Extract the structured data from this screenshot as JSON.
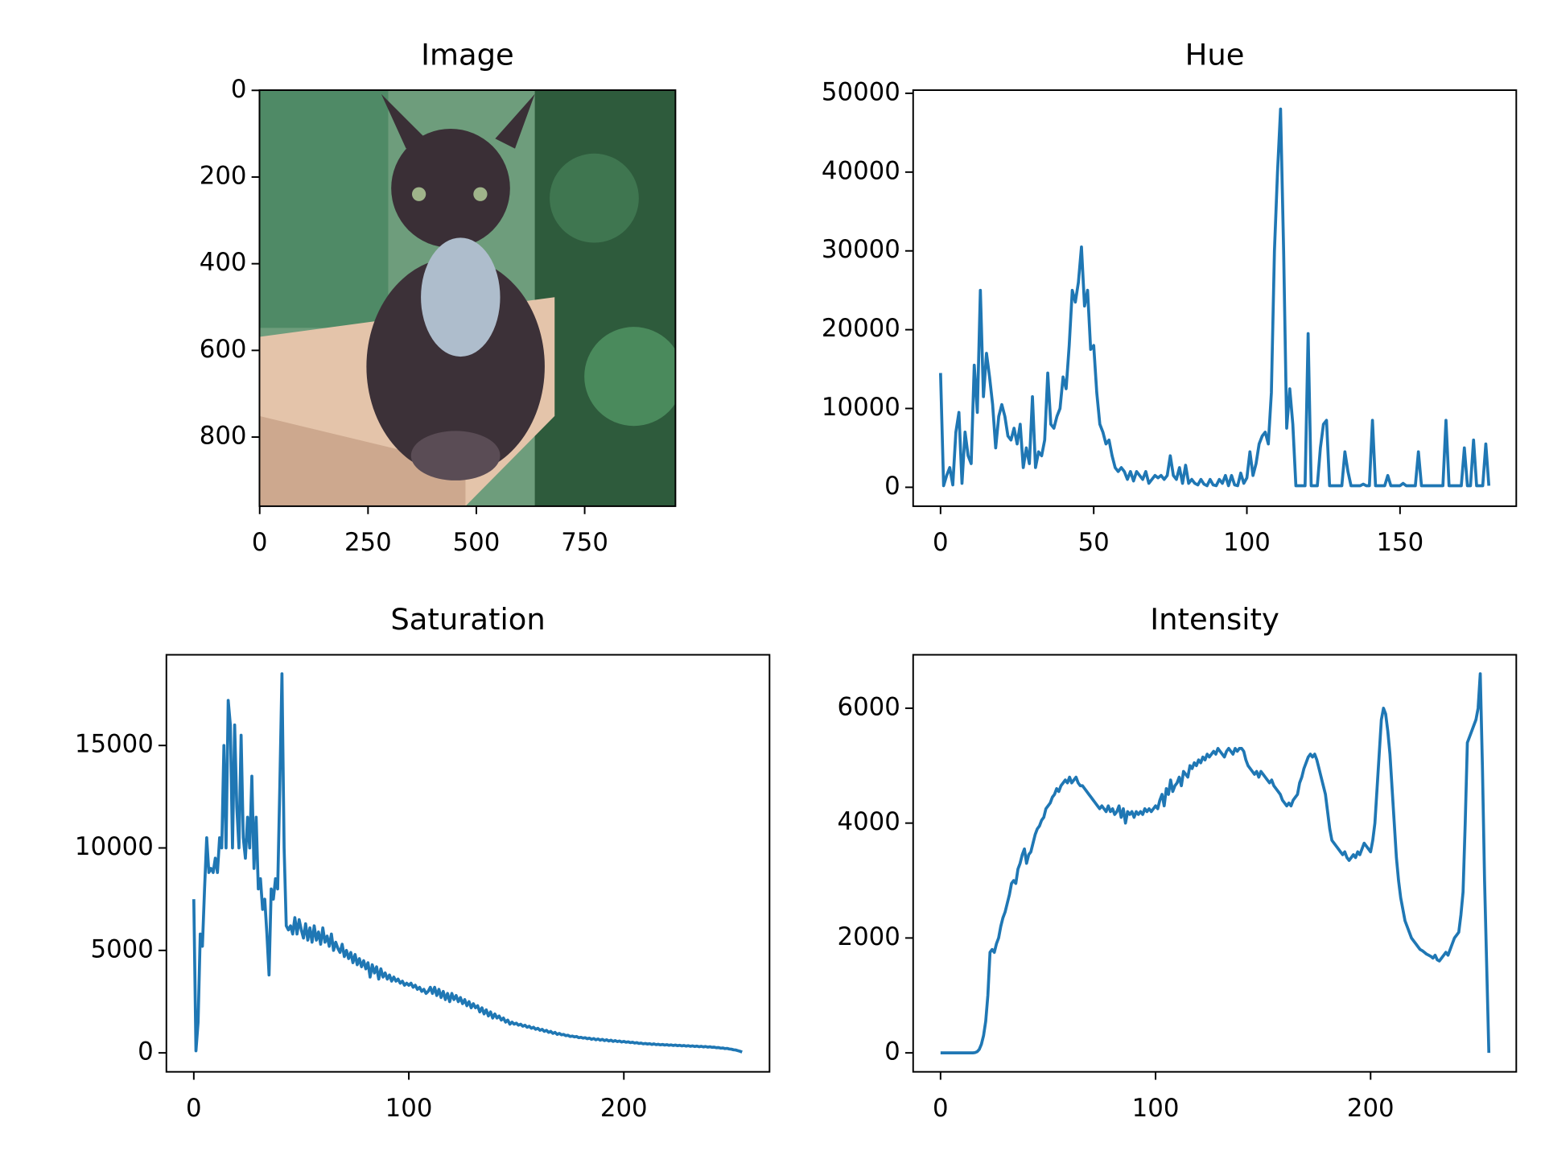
{
  "chart_data": [
    {
      "type": "image",
      "title": "Image",
      "xlim": [
        -0.5,
        959.5
      ],
      "ylim": [
        959.5,
        -0.5
      ],
      "xticks": [
        0,
        250,
        500,
        750
      ],
      "yticks": [
        0,
        200,
        400,
        600,
        800
      ]
    },
    {
      "type": "line",
      "title": "Hue",
      "color": "#1f77b4",
      "xlim": [
        -8.95,
        187.95
      ],
      "ylim": [
        -2400,
        50400
      ],
      "xticks": [
        0,
        50,
        100,
        150
      ],
      "yticks": [
        0,
        10000,
        20000,
        30000,
        40000,
        50000
      ],
      "x": [
        0,
        1,
        2,
        3,
        4,
        5,
        6,
        7,
        8,
        9,
        10,
        11,
        12,
        13,
        14,
        15,
        16,
        17,
        18,
        19,
        20,
        21,
        22,
        23,
        24,
        25,
        26,
        27,
        28,
        29,
        30,
        31,
        32,
        33,
        34,
        35,
        36,
        37,
        38,
        39,
        40,
        41,
        42,
        43,
        44,
        45,
        46,
        47,
        48,
        49,
        50,
        51,
        52,
        53,
        54,
        55,
        56,
        57,
        58,
        59,
        60,
        61,
        62,
        63,
        64,
        65,
        66,
        67,
        68,
        69,
        70,
        71,
        72,
        73,
        74,
        75,
        76,
        77,
        78,
        79,
        80,
        81,
        82,
        83,
        84,
        85,
        86,
        87,
        88,
        89,
        90,
        91,
        92,
        93,
        94,
        95,
        96,
        97,
        98,
        99,
        100,
        101,
        102,
        103,
        104,
        105,
        106,
        107,
        108,
        109,
        110,
        111,
        112,
        113,
        114,
        115,
        116,
        117,
        118,
        119,
        120,
        121,
        122,
        123,
        124,
        125,
        126,
        127,
        128,
        129,
        130,
        131,
        132,
        133,
        134,
        135,
        136,
        137,
        138,
        139,
        140,
        141,
        142,
        143,
        144,
        145,
        146,
        147,
        148,
        149,
        150,
        151,
        152,
        153,
        154,
        155,
        156,
        157,
        158,
        159,
        160,
        161,
        162,
        163,
        164,
        165,
        166,
        167,
        168,
        169,
        170,
        171,
        172,
        173,
        174,
        175,
        176,
        177,
        178,
        179
      ],
      "values": [
        14500,
        200,
        1500,
        2500,
        300,
        7000,
        9500,
        500,
        7000,
        4000,
        3000,
        15500,
        9500,
        25000,
        11500,
        17000,
        14000,
        10500,
        5000,
        9000,
        10500,
        9000,
        6500,
        6000,
        7500,
        5500,
        8000,
        2500,
        5000,
        3000,
        11500,
        2500,
        4500,
        4000,
        6000,
        14500,
        8000,
        7500,
        9000,
        10000,
        14000,
        12500,
        18000,
        25000,
        23500,
        26000,
        30500,
        23000,
        25000,
        17500,
        18000,
        12000,
        8000,
        7000,
        5500,
        6000,
        4000,
        2500,
        2000,
        2500,
        2000,
        1000,
        2000,
        800,
        2000,
        1500,
        1000,
        2000,
        500,
        1000,
        1500,
        1200,
        1500,
        1000,
        1500,
        4000,
        1500,
        1000,
        2500,
        500,
        2800,
        500,
        1000,
        500,
        300,
        1000,
        400,
        200,
        1000,
        300,
        200,
        1000,
        500,
        1500,
        200,
        1500,
        300,
        200,
        1800,
        500,
        1200,
        4500,
        1500,
        3000,
        5500,
        6500,
        7000,
        5500,
        12000,
        30000,
        40000,
        48000,
        30000,
        7500,
        12500,
        8000,
        200,
        200,
        200,
        200,
        19500,
        200,
        200,
        200,
        5000,
        8000,
        8500,
        200,
        200,
        200,
        200,
        200,
        4500,
        2000,
        200,
        200,
        200,
        200,
        400,
        200,
        200,
        8500,
        200,
        200,
        200,
        200,
        1500,
        200,
        200,
        200,
        200,
        500,
        200,
        200,
        200,
        200,
        4500,
        200,
        200,
        200,
        200,
        200,
        200,
        200,
        200,
        8500,
        200,
        200,
        200,
        200,
        200,
        5000,
        200,
        200,
        6000,
        200,
        200,
        200,
        5500,
        200
      ]
    },
    {
      "type": "line",
      "title": "Saturation",
      "color": "#1f77b4",
      "xlim": [
        -12.75,
        267.75
      ],
      "ylim": [
        -925,
        19425
      ],
      "xticks": [
        0,
        100,
        200
      ],
      "yticks": [
        0,
        5000,
        10000,
        15000
      ],
      "x": [
        0,
        1,
        2,
        3,
        4,
        5,
        6,
        7,
        8,
        9,
        10,
        11,
        12,
        13,
        14,
        15,
        16,
        17,
        18,
        19,
        20,
        21,
        22,
        23,
        24,
        25,
        26,
        27,
        28,
        29,
        30,
        31,
        32,
        33,
        34,
        35,
        36,
        37,
        38,
        39,
        40,
        41,
        42,
        43,
        44,
        45,
        46,
        47,
        48,
        49,
        50,
        51,
        52,
        53,
        54,
        55,
        56,
        57,
        58,
        59,
        60,
        61,
        62,
        63,
        64,
        65,
        66,
        67,
        68,
        69,
        70,
        71,
        72,
        73,
        74,
        75,
        76,
        77,
        78,
        79,
        80,
        81,
        82,
        83,
        84,
        85,
        86,
        87,
        88,
        89,
        90,
        91,
        92,
        93,
        94,
        95,
        96,
        97,
        98,
        99,
        100,
        101,
        102,
        103,
        104,
        105,
        106,
        107,
        108,
        109,
        110,
        111,
        112,
        113,
        114,
        115,
        116,
        117,
        118,
        119,
        120,
        121,
        122,
        123,
        124,
        125,
        126,
        127,
        128,
        129,
        130,
        131,
        132,
        133,
        134,
        135,
        136,
        137,
        138,
        139,
        140,
        141,
        142,
        143,
        144,
        145,
        146,
        147,
        148,
        149,
        150,
        151,
        152,
        153,
        154,
        155,
        156,
        157,
        158,
        159,
        160,
        161,
        162,
        163,
        164,
        165,
        166,
        167,
        168,
        169,
        170,
        171,
        172,
        173,
        174,
        175,
        176,
        177,
        178,
        179,
        180,
        181,
        182,
        183,
        184,
        185,
        186,
        187,
        188,
        189,
        190,
        191,
        192,
        193,
        194,
        195,
        196,
        197,
        198,
        199,
        200,
        201,
        202,
        203,
        204,
        205,
        206,
        207,
        208,
        209,
        210,
        211,
        212,
        213,
        214,
        215,
        216,
        217,
        218,
        219,
        220,
        221,
        222,
        223,
        224,
        225,
        226,
        227,
        228,
        229,
        230,
        231,
        232,
        233,
        234,
        235,
        236,
        237,
        238,
        239,
        240,
        241,
        242,
        243,
        244,
        245,
        246,
        247,
        248,
        249,
        250,
        251,
        252,
        253,
        254,
        255
      ],
      "values": [
        7500,
        100,
        1500,
        5800,
        5200,
        8000,
        10500,
        8800,
        9000,
        8800,
        9500,
        8800,
        10500,
        10000,
        15000,
        10000,
        17200,
        16000,
        10000,
        16000,
        12000,
        10000,
        15500,
        10500,
        9500,
        11500,
        10000,
        13500,
        9000,
        11500,
        8000,
        8500,
        7000,
        7500,
        5800,
        3800,
        8000,
        7500,
        8500,
        8000,
        13000,
        18500,
        10000,
        6200,
        6000,
        6200,
        5800,
        6600,
        5800,
        6500,
        6000,
        5600,
        6300,
        5500,
        6100,
        5400,
        6200,
        5500,
        5900,
        5300,
        6100,
        5400,
        5700,
        5200,
        5800,
        5000,
        5400,
        5100,
        4900,
        5300,
        4700,
        5000,
        4600,
        4900,
        4400,
        4800,
        4300,
        4600,
        4200,
        4500,
        4100,
        4400,
        3700,
        4300,
        3900,
        4200,
        3600,
        4100,
        3700,
        3900,
        3600,
        3800,
        3500,
        3700,
        3500,
        3600,
        3400,
        3500,
        3300,
        3400,
        3300,
        3400,
        3200,
        3300,
        3100,
        3200,
        3000,
        3100,
        2900,
        3000,
        3200,
        2900,
        3200,
        2800,
        3100,
        2700,
        3000,
        2600,
        2900,
        2500,
        2900,
        2600,
        2800,
        2500,
        2700,
        2400,
        2600,
        2300,
        2500,
        2200,
        2400,
        2200,
        2300,
        2000,
        2200,
        1900,
        2100,
        1800,
        2000,
        1700,
        1900,
        1700,
        1800,
        1600,
        1700,
        1500,
        1600,
        1400,
        1500,
        1400,
        1450,
        1350,
        1400,
        1300,
        1350,
        1250,
        1300,
        1200,
        1250,
        1150,
        1200,
        1100,
        1150,
        1050,
        1100,
        1000,
        1050,
        950,
        1000,
        900,
        950,
        880,
        900,
        840,
        860,
        800,
        820,
        780,
        800,
        740,
        760,
        720,
        740,
        690,
        720,
        660,
        700,
        640,
        680,
        620,
        660,
        600,
        640,
        580,
        620,
        560,
        600,
        550,
        580,
        530,
        560,
        520,
        540,
        500,
        520,
        480,
        500,
        460,
        480,
        440,
        460,
        430,
        450,
        410,
        440,
        400,
        420,
        390,
        410,
        380,
        400,
        370,
        390,
        360,
        380,
        350,
        370,
        340,
        360,
        330,
        350,
        320,
        340,
        310,
        330,
        300,
        320,
        290,
        310,
        280,
        300,
        270,
        280,
        250,
        260,
        230,
        240,
        210,
        220,
        190,
        180,
        150,
        140,
        110,
        80,
        40
      ]
    },
    {
      "type": "line",
      "title": "Intensity",
      "color": "#1f77b4",
      "xlim": [
        -12.75,
        267.75
      ],
      "ylim": [
        -330,
        6930
      ],
      "xticks": [
        0,
        100,
        200
      ],
      "yticks": [
        0,
        2000,
        4000,
        6000
      ],
      "x": [
        0,
        1,
        2,
        3,
        4,
        5,
        6,
        7,
        8,
        9,
        10,
        11,
        12,
        13,
        14,
        15,
        16,
        17,
        18,
        19,
        20,
        21,
        22,
        23,
        24,
        25,
        26,
        27,
        28,
        29,
        30,
        31,
        32,
        33,
        34,
        35,
        36,
        37,
        38,
        39,
        40,
        41,
        42,
        43,
        44,
        45,
        46,
        47,
        48,
        49,
        50,
        51,
        52,
        53,
        54,
        55,
        56,
        57,
        58,
        59,
        60,
        61,
        62,
        63,
        64,
        65,
        66,
        67,
        68,
        69,
        70,
        71,
        72,
        73,
        74,
        75,
        76,
        77,
        78,
        79,
        80,
        81,
        82,
        83,
        84,
        85,
        86,
        87,
        88,
        89,
        90,
        91,
        92,
        93,
        94,
        95,
        96,
        97,
        98,
        99,
        100,
        101,
        102,
        103,
        104,
        105,
        106,
        107,
        108,
        109,
        110,
        111,
        112,
        113,
        114,
        115,
        116,
        117,
        118,
        119,
        120,
        121,
        122,
        123,
        124,
        125,
        126,
        127,
        128,
        129,
        130,
        131,
        132,
        133,
        134,
        135,
        136,
        137,
        138,
        139,
        140,
        141,
        142,
        143,
        144,
        145,
        146,
        147,
        148,
        149,
        150,
        151,
        152,
        153,
        154,
        155,
        156,
        157,
        158,
        159,
        160,
        161,
        162,
        163,
        164,
        165,
        166,
        167,
        168,
        169,
        170,
        171,
        172,
        173,
        174,
        175,
        176,
        177,
        178,
        179,
        180,
        181,
        182,
        183,
        184,
        185,
        186,
        187,
        188,
        189,
        190,
        191,
        192,
        193,
        194,
        195,
        196,
        197,
        198,
        199,
        200,
        201,
        202,
        203,
        204,
        205,
        206,
        207,
        208,
        209,
        210,
        211,
        212,
        213,
        214,
        215,
        216,
        217,
        218,
        219,
        220,
        221,
        222,
        223,
        224,
        225,
        226,
        227,
        228,
        229,
        230,
        231,
        232,
        233,
        234,
        235,
        236,
        237,
        238,
        239,
        240,
        241,
        242,
        243,
        244,
        245,
        246,
        247,
        248,
        249,
        250,
        251,
        252,
        253,
        254,
        255
      ],
      "values": [
        0,
        0,
        0,
        0,
        0,
        0,
        0,
        0,
        0,
        0,
        0,
        0,
        0,
        0,
        0,
        0,
        5,
        20,
        60,
        150,
        300,
        550,
        1000,
        1750,
        1800,
        1750,
        1900,
        2000,
        2200,
        2350,
        2450,
        2600,
        2750,
        2950,
        3000,
        2950,
        3200,
        3300,
        3450,
        3550,
        3300,
        3450,
        3500,
        3650,
        3800,
        3900,
        3950,
        4050,
        4100,
        4250,
        4300,
        4350,
        4450,
        4500,
        4600,
        4550,
        4650,
        4700,
        4750,
        4700,
        4800,
        4700,
        4750,
        4800,
        4700,
        4650,
        4650,
        4600,
        4550,
        4500,
        4450,
        4400,
        4350,
        4300,
        4250,
        4300,
        4250,
        4200,
        4300,
        4200,
        4250,
        4150,
        4200,
        4300,
        4100,
        4250,
        4000,
        4200,
        4150,
        4200,
        4100,
        4200,
        4150,
        4200,
        4150,
        4250,
        4200,
        4250,
        4200,
        4250,
        4300,
        4250,
        4400,
        4500,
        4300,
        4600,
        4500,
        4750,
        4550,
        4650,
        4700,
        4800,
        4650,
        4900,
        4850,
        4800,
        5000,
        4950,
        5050,
        5000,
        5100,
        5050,
        5150,
        5100,
        5200,
        5150,
        5200,
        5250,
        5200,
        5300,
        5250,
        5200,
        5150,
        5250,
        5300,
        5250,
        5200,
        5300,
        5250,
        5300,
        5300,
        5250,
        5100,
        5000,
        4950,
        4900,
        4850,
        4900,
        4800,
        4900,
        4850,
        4800,
        4750,
        4700,
        4750,
        4650,
        4600,
        4550,
        4500,
        4400,
        4350,
        4300,
        4350,
        4300,
        4400,
        4450,
        4500,
        4700,
        4800,
        4950,
        5050,
        5150,
        5200,
        5150,
        5200,
        5100,
        4950,
        4800,
        4650,
        4500,
        4200,
        3900,
        3700,
        3650,
        3600,
        3550,
        3500,
        3450,
        3500,
        3400,
        3350,
        3400,
        3450,
        3400,
        3500,
        3450,
        3550,
        3650,
        3600,
        3550,
        3500,
        3700,
        4000,
        4600,
        5200,
        5800,
        6000,
        5900,
        5600,
        5200,
        4600,
        4000,
        3400,
        3000,
        2700,
        2500,
        2300,
        2200,
        2100,
        2000,
        1950,
        1900,
        1850,
        1800,
        1780,
        1750,
        1720,
        1700,
        1680,
        1650,
        1700,
        1620,
        1600,
        1650,
        1700,
        1750,
        1700,
        1800,
        1900,
        2000,
        2050,
        2100,
        2400,
        2800,
        4000,
        5400,
        5500,
        5600,
        5700,
        5800,
        6000,
        6600,
        5000,
        3000,
        1500,
        0
      ]
    }
  ]
}
